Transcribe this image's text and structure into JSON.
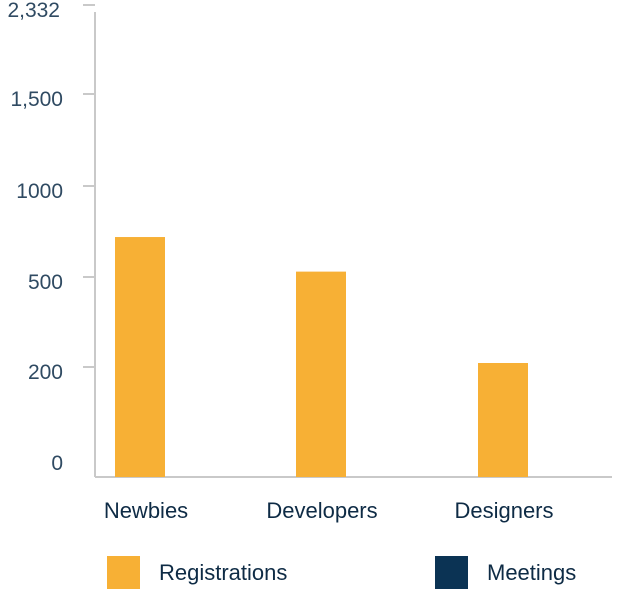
{
  "chart_data": {
    "type": "bar",
    "categories": [
      "Newbies",
      "Developers",
      "Designers"
    ],
    "series": [
      {
        "name": "Registrations",
        "color": "#f7b035",
        "values": [
          780,
          590,
          250
        ]
      },
      {
        "name": "Meetings",
        "color": "#0b3354",
        "values": [
          0,
          0,
          0
        ]
      }
    ],
    "y_ticks": [
      {
        "label": "2,332"
      },
      {
        "label": "1,500"
      },
      {
        "label": "1000"
      },
      {
        "label": "500"
      },
      {
        "label": "200"
      },
      {
        "label": "0"
      }
    ],
    "axis_color": "#c9c9c9",
    "grid": false,
    "legend_position": "bottom"
  }
}
